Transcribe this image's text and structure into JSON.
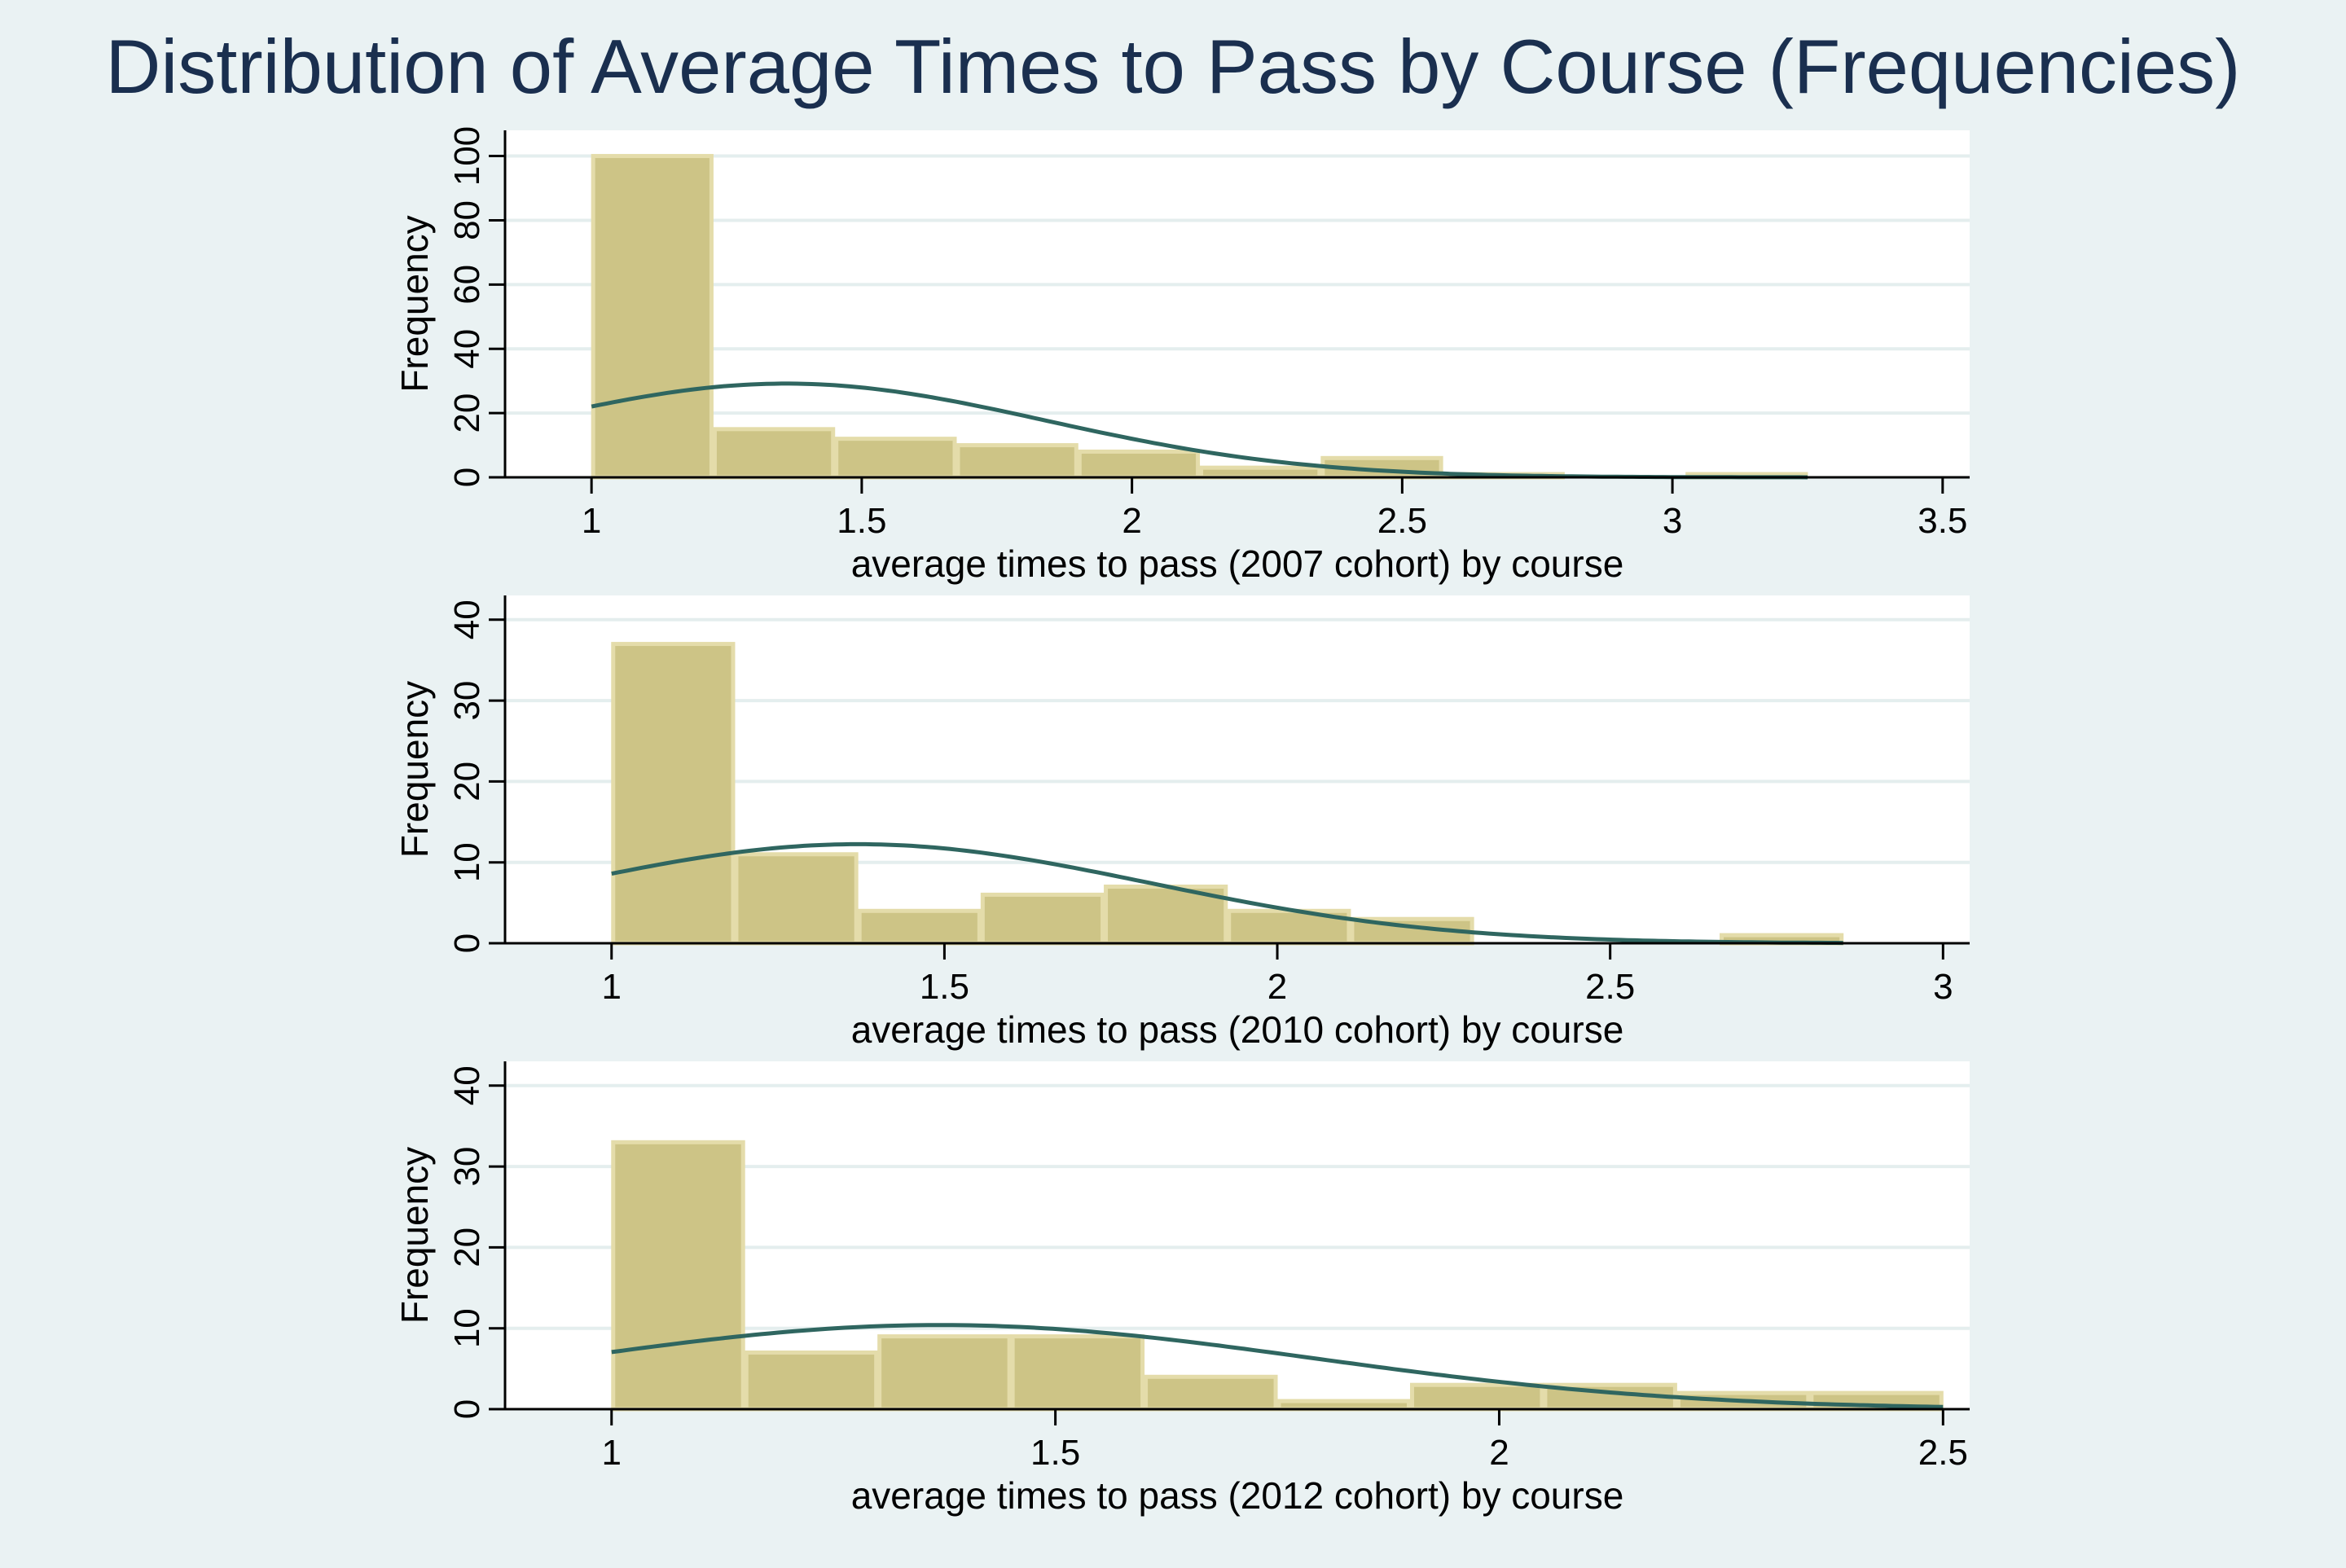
{
  "title": "Distribution of Average Times to Pass by Course (Frequencies)",
  "colors": {
    "background": "#eaf2f3",
    "plot_background": "#ffffff",
    "bar_fill": "#cdc486",
    "bar_stroke": "#e4dcaa",
    "curve": "#2f6660",
    "grid": "#e4eeee",
    "axis": "#000000",
    "title": "#1a2f4f"
  },
  "chart_data": [
    {
      "type": "bar",
      "title": "",
      "xlabel": "average times to pass (2007 cohort) by course",
      "ylabel": "Frequency",
      "xlim": [
        0.84,
        3.55
      ],
      "ylim": [
        0,
        108
      ],
      "xticks": [
        1,
        1.5,
        2,
        2.5,
        3,
        3.5
      ],
      "xtick_labels": [
        "1",
        "1.5",
        "2",
        "2.5",
        "3",
        "3.5"
      ],
      "yticks": [
        0,
        20,
        40,
        60,
        80,
        100
      ],
      "ytick_labels": [
        "0",
        "20",
        "40",
        "60",
        "80",
        "100"
      ],
      "bin_edges": [
        1,
        1.225,
        1.45,
        1.675,
        1.9,
        2.125,
        2.35,
        2.575,
        2.8,
        3.025,
        3.25
      ],
      "values": [
        100,
        15,
        12,
        10,
        8,
        3,
        6,
        1,
        0,
        1
      ],
      "normal_curve": {
        "mean": 1.36,
        "sd": 0.48,
        "n": 156,
        "binwidth": 0.225,
        "x_range": [
          1,
          3.25
        ]
      },
      "grid": true
    },
    {
      "type": "bar",
      "title": "",
      "xlabel": "average times to pass (2010 cohort) by course",
      "ylabel": "Frequency",
      "xlim": [
        0.84,
        3.04
      ],
      "ylim": [
        0,
        43
      ],
      "xticks": [
        1,
        1.5,
        2,
        2.5,
        3
      ],
      "xtick_labels": [
        "1",
        "1.5",
        "2",
        "2.5",
        "3"
      ],
      "yticks": [
        0,
        10,
        20,
        30,
        40
      ],
      "ytick_labels": [
        "0",
        "10",
        "20",
        "30",
        "40"
      ],
      "bin_edges": [
        1,
        1.185,
        1.37,
        1.555,
        1.74,
        1.925,
        2.11,
        2.295,
        2.48,
        2.665,
        2.85
      ],
      "values": [
        37,
        11,
        4,
        6,
        7,
        4,
        3,
        0,
        0,
        1
      ],
      "normal_curve": {
        "mean": 1.37,
        "sd": 0.44,
        "n": 73,
        "binwidth": 0.185,
        "x_range": [
          1,
          2.85
        ]
      },
      "grid": true
    },
    {
      "type": "bar",
      "title": "",
      "xlabel": "average times to pass (2012 cohort) by course",
      "ylabel": "Frequency",
      "xlim": [
        0.88,
        2.53
      ],
      "ylim": [
        0,
        43
      ],
      "xticks": [
        1,
        1.5,
        2,
        2.5
      ],
      "xtick_labels": [
        "1",
        "1.5",
        "2",
        "2.5"
      ],
      "yticks": [
        0,
        10,
        20,
        30,
        40
      ],
      "ytick_labels": [
        "0",
        "10",
        "20",
        "30",
        "40"
      ],
      "bin_edges": [
        1,
        1.15,
        1.3,
        1.45,
        1.6,
        1.75,
        1.9,
        2.05,
        2.2,
        2.35,
        2.5
      ],
      "values": [
        33,
        7,
        9,
        9,
        4,
        1,
        3,
        3,
        2,
        2
      ],
      "normal_curve": {
        "mean": 1.37,
        "sd": 0.42,
        "n": 73,
        "binwidth": 0.15,
        "x_range": [
          1,
          2.5
        ]
      },
      "grid": true
    }
  ]
}
